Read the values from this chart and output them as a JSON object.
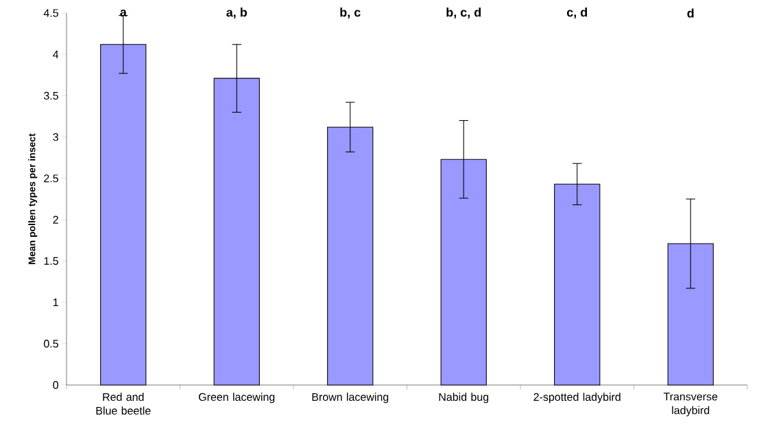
{
  "chart_data": {
    "type": "bar",
    "ylabel": "Mean pollen types per insect",
    "categories": [
      "Red and Blue beetle",
      "Green lacewing",
      "Brown lacewing",
      "Nabid bug",
      "2-spotted ladybird",
      "Transverse ladybird"
    ],
    "values": [
      4.12,
      3.71,
      3.12,
      2.73,
      2.43,
      1.71
    ],
    "errors": [
      0.35,
      0.41,
      0.3,
      0.47,
      0.25,
      0.54
    ],
    "color": "#9999ff",
    "ylim": [
      0,
      4.5
    ],
    "yticks": [
      0,
      0.5,
      1,
      1.5,
      2,
      2.5,
      3,
      3.5,
      4,
      4.5
    ],
    "annotations": [
      "a",
      "a, b",
      "b, c",
      "b, c, d",
      "c, d",
      "d"
    ],
    "grid": false
  }
}
